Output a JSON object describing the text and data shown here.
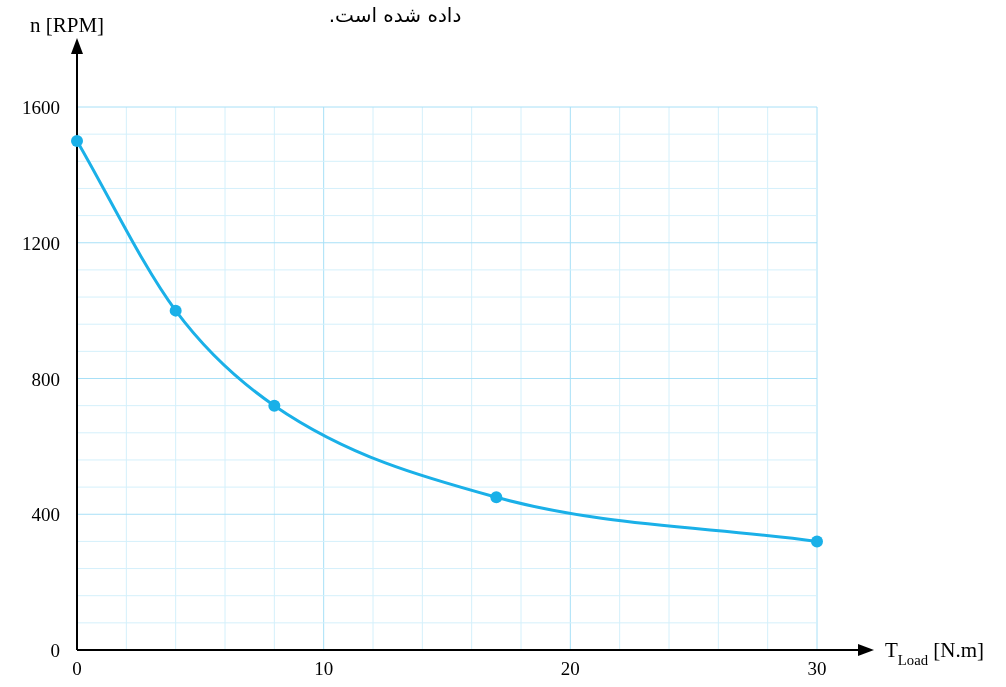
{
  "chart_data": {
    "type": "line",
    "title": "داده شده است.",
    "xlabel": "T$_{Load}$ [N.m]",
    "ylabel": "n [RPM]",
    "x": [
      0,
      4,
      8,
      17,
      30
    ],
    "values": [
      1500,
      1000,
      720,
      450,
      320
    ],
    "color": "#1ab0e8",
    "marker": "circle",
    "line_style": "solid",
    "grid": true,
    "xlim": [
      0,
      30
    ],
    "ylim": [
      0,
      1600
    ],
    "xticks": [
      0,
      {
        "value": 2,
        "label": null
      },
      {
        "value": 4,
        "label": null
      },
      {
        "value": 6,
        "label": null
      },
      {
        "value": 8,
        "label": null
      },
      10,
      {
        "value": 12,
        "label": null
      },
      {
        "value": 14,
        "label": null
      },
      {
        "value": 16,
        "label": null
      },
      {
        "value": 18,
        "label": null
      },
      20,
      {
        "value": 22,
        "label": null
      },
      {
        "value": 24,
        "label": null
      },
      {
        "value": 26,
        "label": null
      },
      {
        "value": 28,
        "label": null
      },
      30
    ],
    "yticks": [
      0,
      {
        "value": 80,
        "label": null
      },
      {
        "value": 160,
        "label": null
      },
      {
        "value": 240,
        "label": null
      },
      {
        "value": 320,
        "label": null
      },
      400,
      {
        "value": 480,
        "label": null
      },
      {
        "value": 560,
        "label": null
      },
      {
        "value": 640,
        "label": null
      },
      {
        "value": 720,
        "label": null
      },
      800,
      {
        "value": 880,
        "label": null
      },
      {
        "value": 960,
        "label": null
      },
      {
        "value": 1040,
        "label": null
      },
      {
        "value": 1120,
        "label": null
      },
      1200,
      {
        "value": 1280,
        "label": null
      },
      {
        "value": 1360,
        "label": null
      },
      {
        "value": 1440,
        "label": null
      },
      {
        "value": 1520,
        "label": null
      },
      1600
    ]
  }
}
